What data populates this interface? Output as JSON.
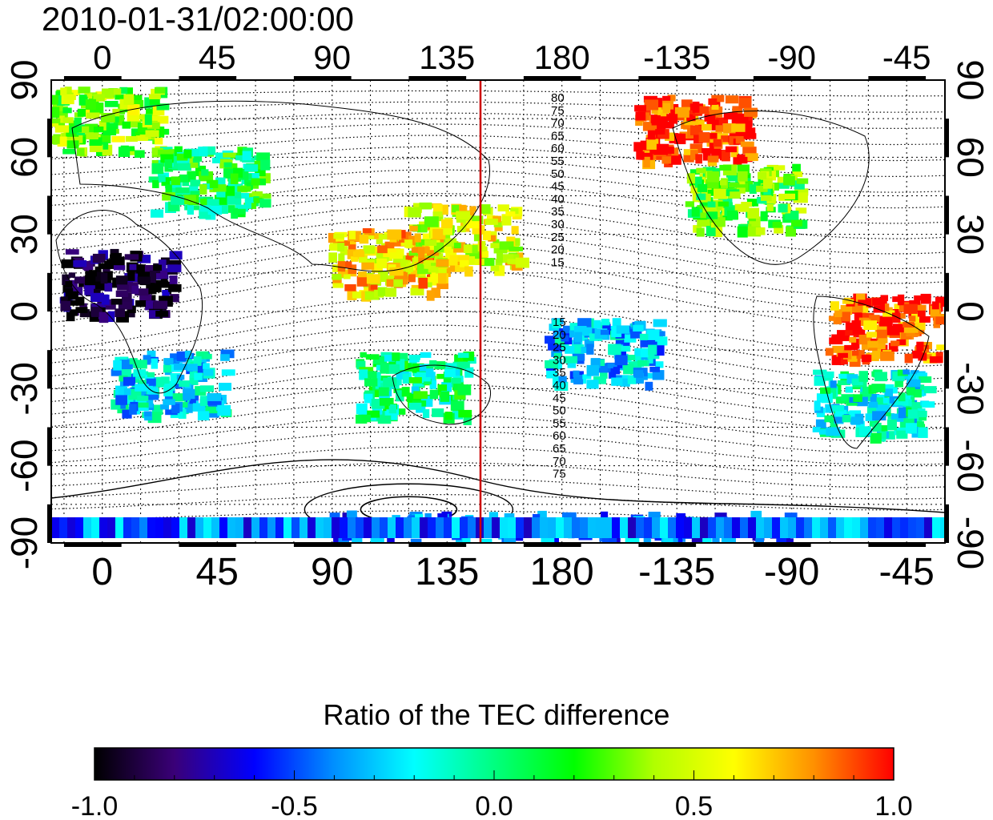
{
  "title": "2010-01-31/02:00:00",
  "map": {
    "projection": "cylindrical",
    "lon_range": [
      -20,
      330
    ],
    "lat_range": [
      -90,
      90
    ],
    "grid": true,
    "x_ticks": [
      "0",
      "45",
      "90",
      "135",
      "180",
      "-135",
      "-90",
      "-45"
    ],
    "x_tick_lons": [
      0,
      45,
      90,
      135,
      180,
      225,
      270,
      315
    ],
    "y_ticks": [
      "90",
      "60",
      "30",
      "0",
      "-30",
      "-60",
      "-90"
    ],
    "y_tick_lats": [
      90,
      60,
      30,
      0,
      -30,
      -60,
      -90
    ],
    "terminator_lon": 150,
    "terminator_color": "#cc0000",
    "contour_labels_north": [
      "80",
      "75",
      "70",
      "65",
      "60",
      "55",
      "50",
      "45",
      "40",
      "35",
      "30",
      "25",
      "20",
      "15"
    ],
    "contour_labels_south": [
      "15",
      "20",
      "25",
      "30",
      "35",
      "40",
      "45",
      "50",
      "55",
      "60",
      "65",
      "70",
      "75"
    ]
  },
  "colorbar": {
    "title": "Ratio of the TEC difference",
    "range": [
      -1.0,
      1.0
    ],
    "tick_labels": [
      "-1.0",
      "-0.5",
      "0.0",
      "0.5",
      "1.0"
    ],
    "colors": [
      "#000000",
      "#3a0078",
      "#0000ff",
      "#0090ff",
      "#00ffff",
      "#00ff80",
      "#00ff00",
      "#b0ff00",
      "#ffff00",
      "#ff9000",
      "#ff0000"
    ]
  },
  "chart_data": {
    "type": "heatmap",
    "title": "2010-01-31/02:00:00",
    "xlim": [
      -20,
      330
    ],
    "ylim": [
      -90,
      90
    ],
    "value_range": [
      -1.0,
      1.0
    ],
    "regions": [
      {
        "lon": 0,
        "lat": 75,
        "value": 0.35
      },
      {
        "lon": 40,
        "lat": 52,
        "value": 0.1
      },
      {
        "lon": 5,
        "lat": 12,
        "value": -0.95
      },
      {
        "lon": 25,
        "lat": -27,
        "value": -0.25
      },
      {
        "lon": 110,
        "lat": 20,
        "value": 0.65
      },
      {
        "lon": 140,
        "lat": 30,
        "value": 0.55
      },
      {
        "lon": 120,
        "lat": -28,
        "value": 0.0
      },
      {
        "lon": 195,
        "lat": -15,
        "value": -0.3
      },
      {
        "lon": 230,
        "lat": 72,
        "value": 0.95
      },
      {
        "lon": 250,
        "lat": 45,
        "value": 0.25
      },
      {
        "lon": 305,
        "lat": -5,
        "value": 0.9
      },
      {
        "lon": 300,
        "lat": -35,
        "value": -0.15
      },
      {
        "lon": 180,
        "lat": -83,
        "value": -0.45
      }
    ]
  }
}
